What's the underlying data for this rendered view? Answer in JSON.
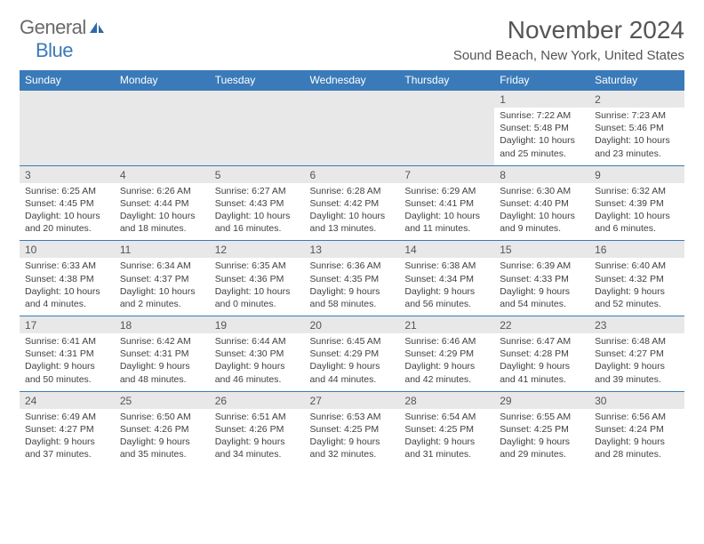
{
  "logo": {
    "line1": "General",
    "line2": "Blue"
  },
  "title": "November 2024",
  "location": "Sound Beach, New York, United States",
  "colors": {
    "header_bg": "#3a7ab8",
    "header_fg": "#ffffff",
    "daynum_bg": "#e8e8e8",
    "row_border": "#3a7ab8",
    "text": "#404040",
    "title_text": "#555555"
  },
  "fonts": {
    "title_size": 28,
    "location_size": 15,
    "header_size": 12,
    "cell_size": 10.5
  },
  "day_names": [
    "Sunday",
    "Monday",
    "Tuesday",
    "Wednesday",
    "Thursday",
    "Friday",
    "Saturday"
  ],
  "weeks": [
    {
      "nums": [
        "",
        "",
        "",
        "",
        "",
        "1",
        "2"
      ],
      "cells": [
        null,
        null,
        null,
        null,
        null,
        {
          "sunrise": "Sunrise: 7:22 AM",
          "sunset": "Sunset: 5:48 PM",
          "d1": "Daylight: 10 hours",
          "d2": "and 25 minutes."
        },
        {
          "sunrise": "Sunrise: 7:23 AM",
          "sunset": "Sunset: 5:46 PM",
          "d1": "Daylight: 10 hours",
          "d2": "and 23 minutes."
        }
      ]
    },
    {
      "nums": [
        "3",
        "4",
        "5",
        "6",
        "7",
        "8",
        "9"
      ],
      "cells": [
        {
          "sunrise": "Sunrise: 6:25 AM",
          "sunset": "Sunset: 4:45 PM",
          "d1": "Daylight: 10 hours",
          "d2": "and 20 minutes."
        },
        {
          "sunrise": "Sunrise: 6:26 AM",
          "sunset": "Sunset: 4:44 PM",
          "d1": "Daylight: 10 hours",
          "d2": "and 18 minutes."
        },
        {
          "sunrise": "Sunrise: 6:27 AM",
          "sunset": "Sunset: 4:43 PM",
          "d1": "Daylight: 10 hours",
          "d2": "and 16 minutes."
        },
        {
          "sunrise": "Sunrise: 6:28 AM",
          "sunset": "Sunset: 4:42 PM",
          "d1": "Daylight: 10 hours",
          "d2": "and 13 minutes."
        },
        {
          "sunrise": "Sunrise: 6:29 AM",
          "sunset": "Sunset: 4:41 PM",
          "d1": "Daylight: 10 hours",
          "d2": "and 11 minutes."
        },
        {
          "sunrise": "Sunrise: 6:30 AM",
          "sunset": "Sunset: 4:40 PM",
          "d1": "Daylight: 10 hours",
          "d2": "and 9 minutes."
        },
        {
          "sunrise": "Sunrise: 6:32 AM",
          "sunset": "Sunset: 4:39 PM",
          "d1": "Daylight: 10 hours",
          "d2": "and 6 minutes."
        }
      ]
    },
    {
      "nums": [
        "10",
        "11",
        "12",
        "13",
        "14",
        "15",
        "16"
      ],
      "cells": [
        {
          "sunrise": "Sunrise: 6:33 AM",
          "sunset": "Sunset: 4:38 PM",
          "d1": "Daylight: 10 hours",
          "d2": "and 4 minutes."
        },
        {
          "sunrise": "Sunrise: 6:34 AM",
          "sunset": "Sunset: 4:37 PM",
          "d1": "Daylight: 10 hours",
          "d2": "and 2 minutes."
        },
        {
          "sunrise": "Sunrise: 6:35 AM",
          "sunset": "Sunset: 4:36 PM",
          "d1": "Daylight: 10 hours",
          "d2": "and 0 minutes."
        },
        {
          "sunrise": "Sunrise: 6:36 AM",
          "sunset": "Sunset: 4:35 PM",
          "d1": "Daylight: 9 hours",
          "d2": "and 58 minutes."
        },
        {
          "sunrise": "Sunrise: 6:38 AM",
          "sunset": "Sunset: 4:34 PM",
          "d1": "Daylight: 9 hours",
          "d2": "and 56 minutes."
        },
        {
          "sunrise": "Sunrise: 6:39 AM",
          "sunset": "Sunset: 4:33 PM",
          "d1": "Daylight: 9 hours",
          "d2": "and 54 minutes."
        },
        {
          "sunrise": "Sunrise: 6:40 AM",
          "sunset": "Sunset: 4:32 PM",
          "d1": "Daylight: 9 hours",
          "d2": "and 52 minutes."
        }
      ]
    },
    {
      "nums": [
        "17",
        "18",
        "19",
        "20",
        "21",
        "22",
        "23"
      ],
      "cells": [
        {
          "sunrise": "Sunrise: 6:41 AM",
          "sunset": "Sunset: 4:31 PM",
          "d1": "Daylight: 9 hours",
          "d2": "and 50 minutes."
        },
        {
          "sunrise": "Sunrise: 6:42 AM",
          "sunset": "Sunset: 4:31 PM",
          "d1": "Daylight: 9 hours",
          "d2": "and 48 minutes."
        },
        {
          "sunrise": "Sunrise: 6:44 AM",
          "sunset": "Sunset: 4:30 PM",
          "d1": "Daylight: 9 hours",
          "d2": "and 46 minutes."
        },
        {
          "sunrise": "Sunrise: 6:45 AM",
          "sunset": "Sunset: 4:29 PM",
          "d1": "Daylight: 9 hours",
          "d2": "and 44 minutes."
        },
        {
          "sunrise": "Sunrise: 6:46 AM",
          "sunset": "Sunset: 4:29 PM",
          "d1": "Daylight: 9 hours",
          "d2": "and 42 minutes."
        },
        {
          "sunrise": "Sunrise: 6:47 AM",
          "sunset": "Sunset: 4:28 PM",
          "d1": "Daylight: 9 hours",
          "d2": "and 41 minutes."
        },
        {
          "sunrise": "Sunrise: 6:48 AM",
          "sunset": "Sunset: 4:27 PM",
          "d1": "Daylight: 9 hours",
          "d2": "and 39 minutes."
        }
      ]
    },
    {
      "nums": [
        "24",
        "25",
        "26",
        "27",
        "28",
        "29",
        "30"
      ],
      "cells": [
        {
          "sunrise": "Sunrise: 6:49 AM",
          "sunset": "Sunset: 4:27 PM",
          "d1": "Daylight: 9 hours",
          "d2": "and 37 minutes."
        },
        {
          "sunrise": "Sunrise: 6:50 AM",
          "sunset": "Sunset: 4:26 PM",
          "d1": "Daylight: 9 hours",
          "d2": "and 35 minutes."
        },
        {
          "sunrise": "Sunrise: 6:51 AM",
          "sunset": "Sunset: 4:26 PM",
          "d1": "Daylight: 9 hours",
          "d2": "and 34 minutes."
        },
        {
          "sunrise": "Sunrise: 6:53 AM",
          "sunset": "Sunset: 4:25 PM",
          "d1": "Daylight: 9 hours",
          "d2": "and 32 minutes."
        },
        {
          "sunrise": "Sunrise: 6:54 AM",
          "sunset": "Sunset: 4:25 PM",
          "d1": "Daylight: 9 hours",
          "d2": "and 31 minutes."
        },
        {
          "sunrise": "Sunrise: 6:55 AM",
          "sunset": "Sunset: 4:25 PM",
          "d1": "Daylight: 9 hours",
          "d2": "and 29 minutes."
        },
        {
          "sunrise": "Sunrise: 6:56 AM",
          "sunset": "Sunset: 4:24 PM",
          "d1": "Daylight: 9 hours",
          "d2": "and 28 minutes."
        }
      ]
    }
  ]
}
